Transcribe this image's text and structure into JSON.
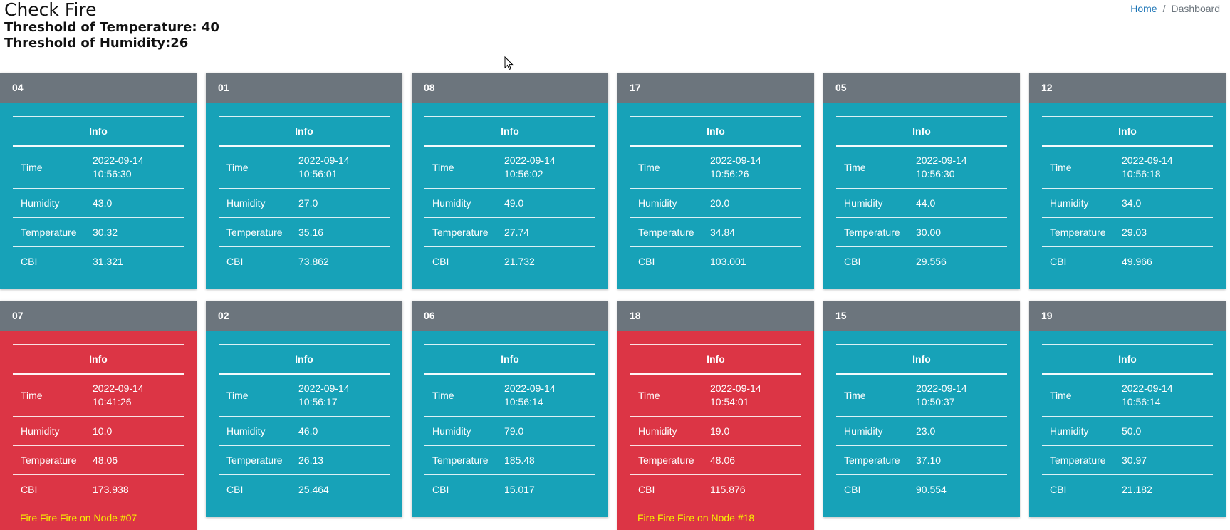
{
  "header": {
    "title": "Check Fire",
    "threshold_temperature_label": "Threshold of Temperature: ",
    "threshold_temperature_value": "40",
    "threshold_humidity_label": "Threshold of Humidity:",
    "threshold_humidity_value": "26"
  },
  "breadcrumb": {
    "home": "Home",
    "separator": "/",
    "current": "Dashboard"
  },
  "table_labels": {
    "header": "Info",
    "time": "Time",
    "humidity": "Humidity",
    "temperature": "Temperature",
    "cbi": "CBI"
  },
  "colors": {
    "normal": "#17a2b8",
    "alert": "#dc3545",
    "header": "#6c757d",
    "fire_text": "#f7f100"
  },
  "nodes": [
    {
      "id": "04",
      "date": "2022-09-14",
      "time": "10:56:30",
      "humidity": "43.0",
      "temperature": "30.32",
      "cbi": "31.321",
      "alert": false,
      "fire_msg": ""
    },
    {
      "id": "01",
      "date": "2022-09-14",
      "time": "10:56:01",
      "humidity": "27.0",
      "temperature": "35.16",
      "cbi": "73.862",
      "alert": false,
      "fire_msg": ""
    },
    {
      "id": "08",
      "date": "2022-09-14",
      "time": "10:56:02",
      "humidity": "49.0",
      "temperature": "27.74",
      "cbi": "21.732",
      "alert": false,
      "fire_msg": ""
    },
    {
      "id": "17",
      "date": "2022-09-14",
      "time": "10:56:26",
      "humidity": "20.0",
      "temperature": "34.84",
      "cbi": "103.001",
      "alert": false,
      "fire_msg": ""
    },
    {
      "id": "05",
      "date": "2022-09-14",
      "time": "10:56:30",
      "humidity": "44.0",
      "temperature": "30.00",
      "cbi": "29.556",
      "alert": false,
      "fire_msg": ""
    },
    {
      "id": "12",
      "date": "2022-09-14",
      "time": "10:56:18",
      "humidity": "34.0",
      "temperature": "29.03",
      "cbi": "49.966",
      "alert": false,
      "fire_msg": ""
    },
    {
      "id": "07",
      "date": "2022-09-14",
      "time": "10:41:26",
      "humidity": "10.0",
      "temperature": "48.06",
      "cbi": "173.938",
      "alert": true,
      "fire_msg": "Fire Fire Fire on Node #07"
    },
    {
      "id": "02",
      "date": "2022-09-14",
      "time": "10:56:17",
      "humidity": "46.0",
      "temperature": "26.13",
      "cbi": "25.464",
      "alert": false,
      "fire_msg": ""
    },
    {
      "id": "06",
      "date": "2022-09-14",
      "time": "10:56:14",
      "humidity": "79.0",
      "temperature": "185.48",
      "cbi": "15.017",
      "alert": false,
      "fire_msg": ""
    },
    {
      "id": "18",
      "date": "2022-09-14",
      "time": "10:54:01",
      "humidity": "19.0",
      "temperature": "48.06",
      "cbi": "115.876",
      "alert": true,
      "fire_msg": "Fire Fire Fire on Node #18"
    },
    {
      "id": "15",
      "date": "2022-09-14",
      "time": "10:50:37",
      "humidity": "23.0",
      "temperature": "37.10",
      "cbi": "90.554",
      "alert": false,
      "fire_msg": ""
    },
    {
      "id": "19",
      "date": "2022-09-14",
      "time": "10:56:14",
      "humidity": "50.0",
      "temperature": "30.97",
      "cbi": "21.182",
      "alert": false,
      "fire_msg": ""
    }
  ]
}
